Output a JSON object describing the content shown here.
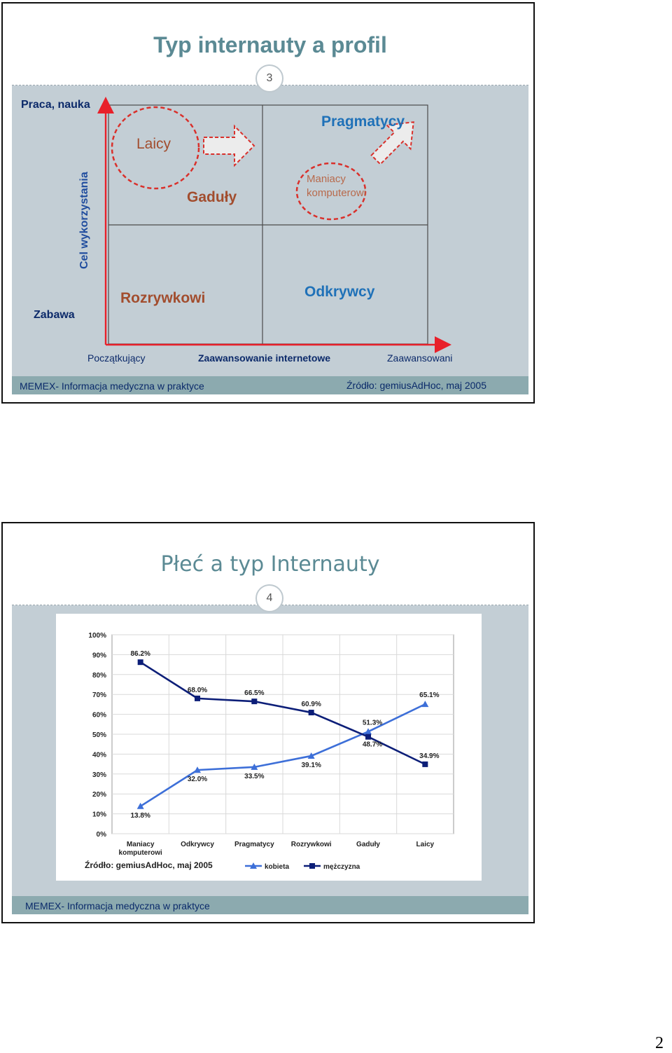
{
  "slide3": {
    "title": "Typ internauty a profil",
    "page_number": "3",
    "y_top_label": "Praca, nauka",
    "y_axis_label": "Cel wykorzystania",
    "y_bottom_label": "Zabawa",
    "x_left_label": "Początkujący",
    "x_axis_label": "Zaawansowanie internetowe",
    "x_right_label": "Zaawansowani",
    "segments": {
      "laicy": "Laicy",
      "gaduly": "Gaduły",
      "pragmatycy": "Pragmatycy",
      "maniacy": "Maniacy komputerowi",
      "rozrywkowi": "Rozrywkowi",
      "odkrywcy": "Odkrywcy"
    },
    "footer_left": "MEMEX- Informacja medyczna w praktyce",
    "footer_right": "Źródło: gemiusAdHoc, maj 2005",
    "colors": {
      "accent_red": "#d9302b",
      "brown": "#a24d2e",
      "blue": "#1f71b8",
      "title": "#5b8a94"
    }
  },
  "slide4": {
    "title": "Płeć a typ Internauty",
    "page_number": "4",
    "source_note": "Źródło: gemiusAdHoc, maj 2005",
    "footer_left": "MEMEX- Informacja medyczna w praktyce"
  },
  "chart_data": {
    "type": "line",
    "categories": [
      "Maniacy komputerowi",
      "Odkrywcy",
      "Pragmatycy",
      "Rozrywkowi",
      "Gaduły",
      "Laicy"
    ],
    "series": [
      {
        "name": "kobieta",
        "values": [
          13.8,
          32.0,
          33.5,
          39.1,
          51.3,
          65.1
        ],
        "labels": [
          "13.8%",
          "32.0%",
          "33.5%",
          "39.1%",
          "51.3%",
          "65.1%"
        ],
        "color": "#3d6fd8",
        "marker": "triangle"
      },
      {
        "name": "mężczyzna",
        "values": [
          86.2,
          68.0,
          66.5,
          60.9,
          48.7,
          34.9
        ],
        "labels": [
          "86.2%",
          "68.0%",
          "66.5%",
          "60.9%",
          "48.7%",
          "34.9%"
        ],
        "color": "#0c1e78",
        "marker": "square"
      }
    ],
    "yticks": [
      "0%",
      "10%",
      "20%",
      "30%",
      "40%",
      "50%",
      "60%",
      "70%",
      "80%",
      "90%",
      "100%"
    ],
    "ylim": [
      0,
      100
    ],
    "grid": true,
    "legend": "bottom"
  },
  "page": {
    "number": "2"
  }
}
